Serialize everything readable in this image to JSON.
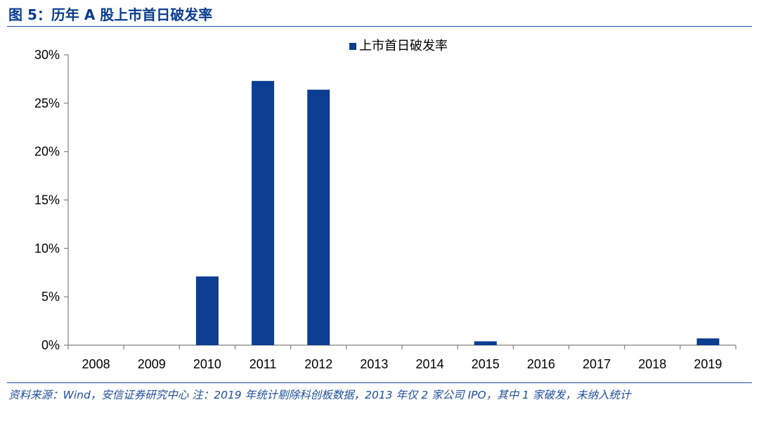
{
  "header": {
    "title": "图 5：历年 A 股上市首日破发率"
  },
  "chart_data": {
    "type": "bar",
    "categories": [
      "2008",
      "2009",
      "2010",
      "2011",
      "2012",
      "2013",
      "2014",
      "2015",
      "2016",
      "2017",
      "2018",
      "2019"
    ],
    "series": [
      {
        "name": "上市首日破发率",
        "values": [
          0,
          0,
          7.1,
          27.3,
          26.4,
          0,
          0,
          0.4,
          0,
          0,
          0,
          0.7
        ]
      }
    ],
    "ylim": [
      0,
      30
    ],
    "yticks": [
      "0%",
      "5%",
      "10%",
      "15%",
      "20%",
      "25%",
      "30%"
    ],
    "ytick_values": [
      0,
      5,
      10,
      15,
      20,
      25,
      30
    ],
    "grid": false,
    "legend_position": "top-center",
    "colors": {
      "bar": "#0b3d91",
      "axis": "#808080"
    }
  },
  "footer": {
    "source": "资料来源：Wind，安信证券研究中心 注：2019 年统计剔除科创板数据，2013 年仅 2 家公司 IPO，其中 1 家破发，未纳入统计"
  }
}
